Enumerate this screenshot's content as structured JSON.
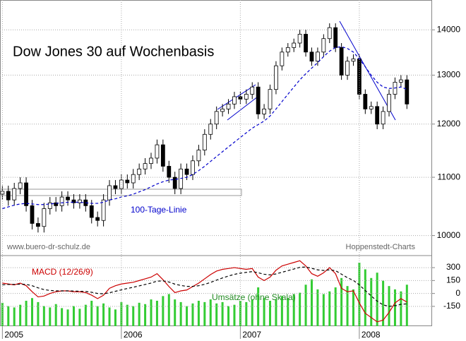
{
  "chart_data": [
    {
      "type": "candlestick",
      "title": "Dow Jones 30 auf Wochenbasis",
      "x": [
        2005.0,
        2005.05,
        2005.1,
        2005.15,
        2005.2,
        2005.25,
        2005.3,
        2005.35,
        2005.4,
        2005.45,
        2005.5,
        2005.55,
        2005.6,
        2005.65,
        2005.7,
        2005.75,
        2005.8,
        2005.85,
        2005.9,
        2005.95,
        2006.0,
        2006.05,
        2006.1,
        2006.15,
        2006.2,
        2006.25,
        2006.3,
        2006.35,
        2006.4,
        2006.45,
        2006.5,
        2006.55,
        2006.6,
        2006.65,
        2006.7,
        2006.75,
        2006.8,
        2006.85,
        2006.9,
        2006.95,
        2007.0,
        2007.05,
        2007.1,
        2007.15,
        2007.2,
        2007.25,
        2007.3,
        2007.35,
        2007.4,
        2007.45,
        2007.5,
        2007.55,
        2007.6,
        2007.65,
        2007.7,
        2007.75,
        2007.8,
        2007.85,
        2007.9,
        2007.95,
        2008.0,
        2008.05,
        2008.1,
        2008.15,
        2008.2,
        2008.25,
        2008.3,
        2008.35,
        2008.4
      ],
      "open": [
        10700,
        10750,
        10600,
        10800,
        10900,
        10500,
        10200,
        10150,
        10450,
        10550,
        10500,
        10650,
        10600,
        10550,
        10600,
        10500,
        10300,
        10250,
        10600,
        10850,
        10800,
        10950,
        10900,
        11050,
        11150,
        11250,
        11350,
        11600,
        11200,
        11000,
        10800,
        11150,
        11050,
        11300,
        11500,
        11800,
        12000,
        12250,
        12300,
        12400,
        12550,
        12500,
        12600,
        12750,
        12200,
        12300,
        12700,
        13200,
        13500,
        13600,
        13700,
        13900,
        13500,
        13300,
        13500,
        13800,
        14050,
        13600,
        13000,
        13300,
        13350,
        12600,
        12300,
        12350,
        12000,
        12250,
        12600,
        12850,
        12900
      ],
      "high": [
        10850,
        10850,
        10900,
        11000,
        11000,
        10600,
        10300,
        10550,
        10650,
        10650,
        10750,
        10750,
        10700,
        10700,
        10700,
        10600,
        10400,
        10700,
        10950,
        10950,
        11050,
        11050,
        11150,
        11250,
        11350,
        11450,
        11700,
        11700,
        11300,
        11100,
        11250,
        11250,
        11400,
        11600,
        11900,
        12100,
        12350,
        12400,
        12500,
        12650,
        12650,
        12700,
        12850,
        12850,
        12400,
        12800,
        13300,
        13600,
        13700,
        13800,
        14000,
        14000,
        13600,
        13600,
        13900,
        14150,
        14150,
        13700,
        13400,
        13450,
        13450,
        12700,
        12450,
        12450,
        12350,
        12700,
        12950,
        13000,
        13000
      ],
      "low": [
        10600,
        10500,
        10500,
        10700,
        10400,
        10100,
        10050,
        10050,
        10350,
        10400,
        10400,
        10500,
        10450,
        10450,
        10400,
        10200,
        10150,
        10150,
        10500,
        10700,
        10700,
        10800,
        10800,
        10950,
        11050,
        11150,
        11250,
        11100,
        10900,
        10700,
        10700,
        10950,
        10950,
        11200,
        11400,
        11700,
        11900,
        12150,
        12200,
        12300,
        12400,
        12400,
        12500,
        12100,
        12100,
        12200,
        12600,
        13100,
        13400,
        13500,
        13600,
        13400,
        13200,
        13200,
        13400,
        13700,
        13500,
        12900,
        12900,
        13200,
        12500,
        12200,
        12200,
        11900,
        11900,
        12150,
        12500,
        12750,
        12300
      ],
      "close": [
        10750,
        10600,
        10800,
        10900,
        10500,
        10200,
        10150,
        10450,
        10550,
        10500,
        10650,
        10600,
        10550,
        10600,
        10500,
        10300,
        10250,
        10600,
        10850,
        10800,
        10950,
        10900,
        11050,
        11150,
        11250,
        11350,
        11600,
        11200,
        11000,
        10800,
        11150,
        11050,
        11300,
        11500,
        11800,
        12000,
        12250,
        12300,
        12400,
        12550,
        12500,
        12600,
        12750,
        12200,
        12300,
        12700,
        13200,
        13500,
        13600,
        13700,
        13900,
        13500,
        13300,
        13500,
        13800,
        14050,
        13600,
        13000,
        13300,
        13350,
        12600,
        12300,
        12350,
        12000,
        12250,
        12600,
        12850,
        12900,
        12400
      ],
      "up_color": "#ffffff",
      "down_color": "#000000",
      "series": [
        {
          "name": "100-Tage-Linie",
          "color": "#0000cc",
          "values": [
            10450,
            10480,
            10510,
            10530,
            10540,
            10530,
            10520,
            10520,
            10530,
            10540,
            10550,
            10560,
            10560,
            10560,
            10550,
            10540,
            10540,
            10560,
            10600,
            10620,
            10650,
            10670,
            10700,
            10740,
            10780,
            10830,
            10880,
            10920,
            10950,
            10960,
            10980,
            11000,
            11050,
            11120,
            11200,
            11290,
            11380,
            11470,
            11560,
            11650,
            11740,
            11830,
            11920,
            11990,
            12060,
            12160,
            12300,
            12450,
            12600,
            12750,
            12900,
            13030,
            13150,
            13270,
            13400,
            13520,
            13600,
            13620,
            13580,
            13500,
            13350,
            13180,
            13000,
            12850,
            12750,
            12720,
            12730,
            12750,
            12700
          ]
        }
      ],
      "annotations": [
        "www.buero-dr-schulz.de",
        "Hoppenstedt-Charts"
      ],
      "xlim": [
        2004.98,
        2008.6
      ],
      "ylim": [
        9700,
        14700
      ],
      "yticks": [
        14000,
        13000,
        12000,
        11000,
        10000
      ],
      "log": true,
      "grid": true
    },
    {
      "type": "line",
      "x": [
        2005.0,
        2005.05,
        2005.1,
        2005.15,
        2005.2,
        2005.25,
        2005.3,
        2005.35,
        2005.4,
        2005.45,
        2005.5,
        2005.55,
        2005.6,
        2005.65,
        2005.7,
        2005.75,
        2005.8,
        2005.85,
        2005.9,
        2005.95,
        2006.0,
        2006.05,
        2006.1,
        2006.15,
        2006.2,
        2006.25,
        2006.3,
        2006.35,
        2006.4,
        2006.45,
        2006.5,
        2006.55,
        2006.6,
        2006.65,
        2006.7,
        2006.75,
        2006.8,
        2006.85,
        2006.9,
        2006.95,
        2007.0,
        2007.05,
        2007.1,
        2007.15,
        2007.2,
        2007.25,
        2007.3,
        2007.35,
        2007.4,
        2007.45,
        2007.5,
        2007.55,
        2007.6,
        2007.65,
        2007.7,
        2007.75,
        2007.8,
        2007.85,
        2007.9,
        2007.95,
        2008.0,
        2008.05,
        2008.1,
        2008.15,
        2008.2,
        2008.25,
        2008.3,
        2008.35,
        2008.4
      ],
      "series": [
        {
          "name": "MACD (12/26/9)",
          "color": "#cc0000",
          "values": [
            120,
            110,
            100,
            120,
            90,
            20,
            -40,
            -30,
            0,
            20,
            30,
            30,
            20,
            20,
            10,
            -20,
            -60,
            -20,
            60,
            90,
            110,
            120,
            130,
            150,
            170,
            190,
            230,
            160,
            80,
            10,
            30,
            40,
            80,
            120,
            170,
            220,
            260,
            280,
            290,
            300,
            290,
            280,
            290,
            190,
            150,
            190,
            270,
            320,
            340,
            360,
            380,
            320,
            230,
            200,
            240,
            300,
            230,
            60,
            20,
            30,
            -110,
            -230,
            -280,
            -330,
            -310,
            -220,
            -110,
            -60,
            -100
          ]
        },
        {
          "color": "#000000",
          "dash": true,
          "values": [
            100,
            105,
            105,
            108,
            105,
            90,
            65,
            45,
            35,
            30,
            30,
            30,
            28,
            26,
            23,
            14,
            0,
            -4,
            8,
            25,
            42,
            58,
            72,
            88,
            104,
            121,
            143,
            146,
            133,
            108,
            93,
            82,
            82,
            90,
            106,
            129,
            155,
            180,
            202,
            222,
            236,
            245,
            254,
            241,
            223,
            216,
            227,
            246,
            265,
            284,
            303,
            307,
            292,
            274,
            267,
            274,
            265,
            224,
            183,
            152,
            100,
            34,
            -29,
            -89,
            -133,
            -150,
            -142,
            -126,
            -121
          ]
        }
      ],
      "bars": {
        "name": "Umsätze (ohne Skala)",
        "color": "#33cc33",
        "values": [
          35,
          30,
          28,
          32,
          38,
          42,
          36,
          30,
          28,
          33,
          27,
          25,
          30,
          26,
          32,
          38,
          30,
          34,
          28,
          25,
          36,
          32,
          30,
          35,
          33,
          40,
          38,
          45,
          48,
          40,
          36,
          30,
          34,
          38,
          36,
          40,
          34,
          36,
          30,
          32,
          38,
          36,
          40,
          58,
          42,
          38,
          40,
          45,
          42,
          48,
          50,
          62,
          70,
          55,
          48,
          52,
          58,
          72,
          60,
          55,
          95,
          85,
          72,
          80,
          68,
          60,
          55,
          52,
          62
        ]
      },
      "xlim": [
        2004.98,
        2008.6
      ],
      "xticks": [
        2005,
        2006,
        2007,
        2008
      ],
      "ylim": [
        -380,
        440
      ],
      "yticks": [
        300,
        150,
        0,
        -150
      ],
      "grid": true
    }
  ]
}
